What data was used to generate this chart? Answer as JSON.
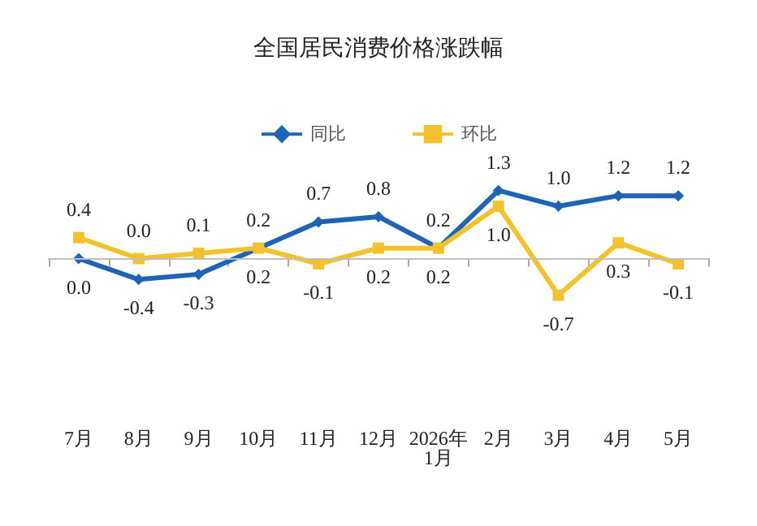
{
  "chart_data": {
    "type": "line",
    "title": "全国居民消费价格涨跌幅",
    "categories": [
      "7月",
      "8月",
      "9月",
      "10月",
      "11月",
      "12月",
      "2026年\n1月",
      "2月",
      "3月",
      "4月",
      "5月"
    ],
    "series": [
      {
        "name": "同比",
        "color": "#1f64b4",
        "marker": "diamond",
        "values": [
          0.0,
          -0.4,
          -0.3,
          0.2,
          0.7,
          0.8,
          0.2,
          1.3,
          1.0,
          1.2,
          1.2
        ],
        "value_labels": [
          "0.0",
          "-0.4",
          "-0.3",
          "0.2",
          "0.7",
          "0.8",
          "0.2",
          "1.3",
          "1.0",
          "1.2",
          "1.2"
        ]
      },
      {
        "name": "环比",
        "color": "#f2c12e",
        "marker": "square",
        "values": [
          0.4,
          0.0,
          0.1,
          0.2,
          -0.1,
          0.2,
          0.2,
          1.0,
          -0.7,
          0.3,
          -0.1
        ],
        "value_labels": [
          "0.4",
          "0.0",
          "0.1",
          "0.2",
          "-0.1",
          "0.2",
          "0.2",
          "1.0",
          "-0.7",
          "0.3",
          "-0.1"
        ]
      }
    ],
    "tick_labels": "x",
    "legend": "top",
    "grid": false,
    "ref_lines": [
      {
        "axis": "y",
        "value": 0,
        "color": "#bfbfbf"
      }
    ]
  }
}
